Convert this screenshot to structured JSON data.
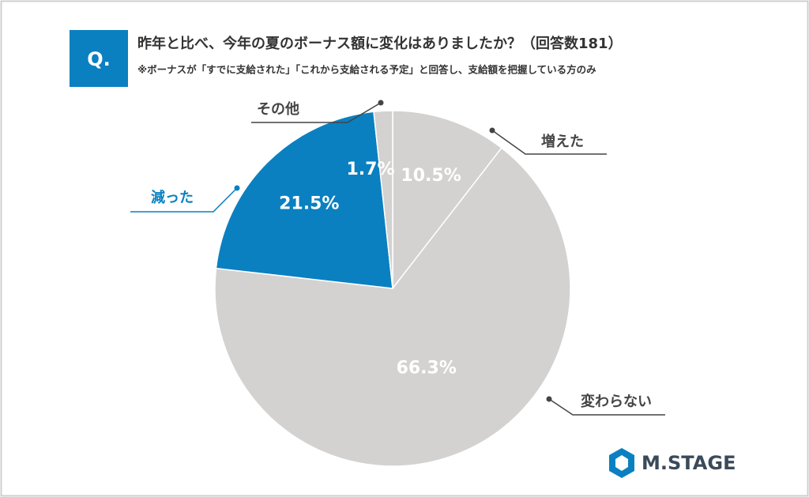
{
  "chart_data": {
    "type": "pie",
    "question_badge": "Q.",
    "title": "昨年と比べ、今年の夏のボーナス額に変化はありましたか？（回答数181）",
    "subtitle": "※ボーナスが「すでに支給された」「これから支給される予定」と回答し、支給額を把握している方のみ",
    "categories": [
      "増えた",
      "変わらない",
      "減った",
      "その他"
    ],
    "values": [
      10.5,
      66.3,
      21.5,
      1.7
    ],
    "value_labels": [
      "10.5%",
      "66.3%",
      "21.5%",
      "1.7%"
    ],
    "colors": [
      "#d3d2d1",
      "#d3d2d1",
      "#0a80c1",
      "#d3d2d1"
    ],
    "label_colors": [
      "#444444",
      "#444444",
      "#0a80c1",
      "#444444"
    ],
    "brand": "M.STAGE"
  }
}
